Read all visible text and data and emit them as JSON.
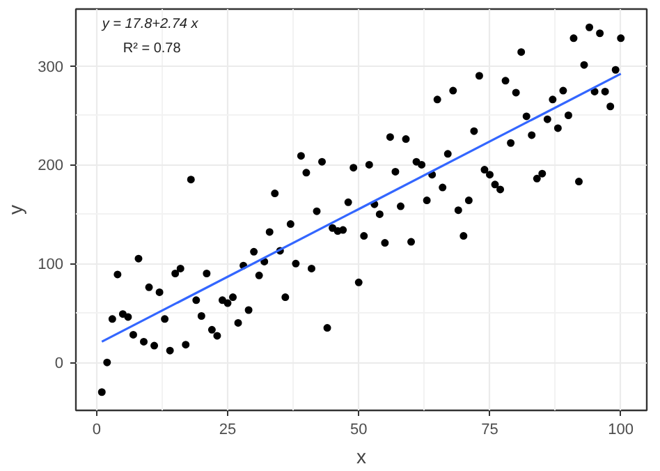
{
  "chart_data": {
    "type": "scatter",
    "xlabel": "x",
    "ylabel": "y",
    "annotations": [
      "y = 17.8+2.74 x",
      "R² = 0.78"
    ],
    "xlim": [
      -3.95,
      104.95
    ],
    "ylim": [
      -48.5,
      357.5
    ],
    "xticks": [
      0,
      25,
      50,
      75,
      100
    ],
    "yticks": [
      0,
      100,
      200,
      300
    ],
    "grid": true,
    "marker": "circle",
    "series": [
      {
        "color": "#000000",
        "x": [
          1,
          2,
          3,
          4,
          5,
          6,
          7,
          8,
          9,
          10,
          11,
          12,
          13,
          14,
          15,
          16,
          17,
          18,
          19,
          20,
          21,
          22,
          23,
          24,
          25,
          26,
          27,
          28,
          29,
          30,
          31,
          32,
          33,
          34,
          35,
          36,
          37,
          38,
          39,
          40,
          41,
          42,
          43,
          44,
          45,
          46,
          47,
          48,
          49,
          50,
          51,
          52,
          53,
          54,
          55,
          56,
          57,
          58,
          59,
          60,
          61,
          62,
          63,
          64,
          65,
          66,
          67,
          68,
          69,
          70,
          71,
          72,
          73,
          74,
          75,
          76,
          77,
          78,
          79,
          80,
          81,
          82,
          83,
          84,
          85,
          86,
          87,
          88,
          89,
          90,
          91,
          92,
          93,
          94,
          95,
          96,
          97,
          98,
          99,
          100
        ],
        "values": [
          -30,
          0,
          44,
          89,
          49,
          46,
          28,
          105,
          21,
          76,
          17,
          71,
          44,
          12,
          90,
          95,
          18,
          185,
          63,
          47,
          90,
          33,
          27,
          63,
          60,
          66,
          40,
          98,
          53,
          112,
          88,
          102,
          132,
          171,
          113,
          66,
          140,
          100,
          209,
          192,
          95,
          153,
          203,
          35,
          136,
          133,
          134,
          162,
          197,
          81,
          128,
          200,
          160,
          150,
          121,
          228,
          193,
          158,
          226,
          122,
          203,
          200,
          164,
          190,
          266,
          177,
          211,
          275,
          154,
          128,
          164,
          234,
          290,
          195,
          190,
          180,
          175,
          285,
          222,
          273,
          314,
          249,
          230,
          186,
          191,
          246,
          266,
          237,
          275,
          250,
          328,
          183,
          301,
          339,
          274,
          333,
          274,
          259,
          296,
          328
        ]
      },
      {
        "type": "line",
        "color": "#3366ff",
        "x": [
          1,
          100
        ],
        "values": [
          21,
          292
        ],
        "line_style": "solid",
        "marker": "none"
      }
    ]
  }
}
